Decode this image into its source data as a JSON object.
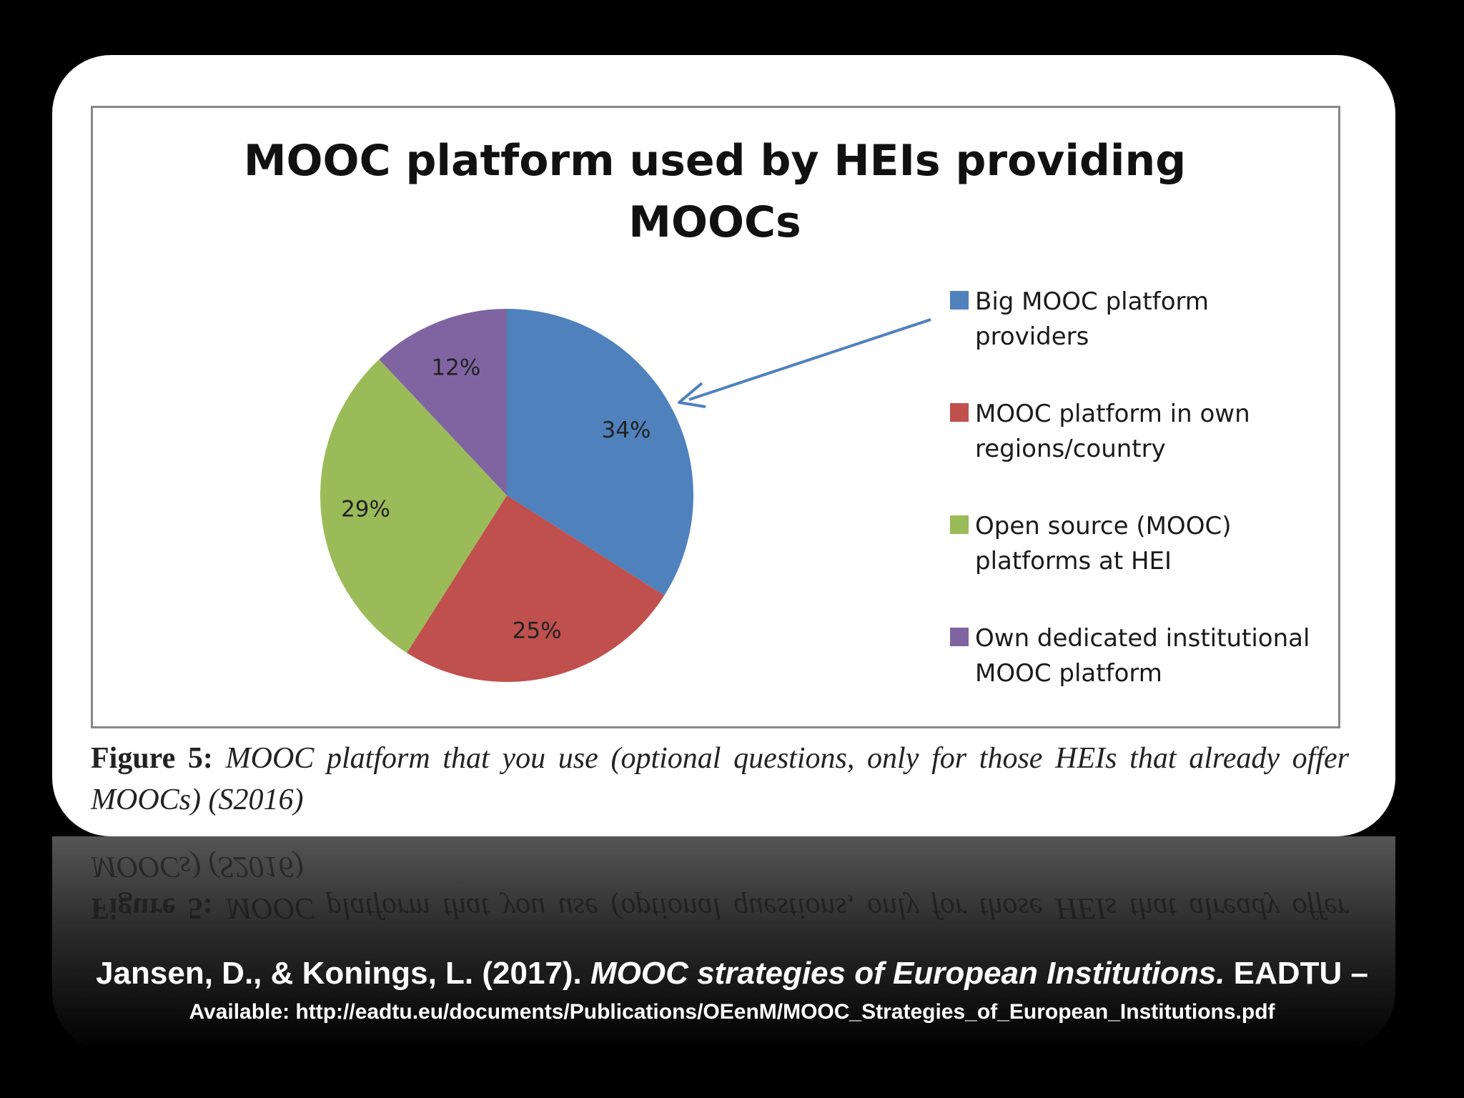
{
  "chart_data": {
    "type": "pie",
    "title_lines": [
      "MOOC platform used by HEIs providing",
      "MOOCs"
    ],
    "slices": [
      {
        "name": "Big MOOC platform providers",
        "legend_lines": [
          "Big MOOC platform",
          "providers"
        ],
        "value": 34,
        "label": "34%",
        "color": "#4f81bd"
      },
      {
        "name": "MOOC platform in own regions/country",
        "legend_lines": [
          "MOOC platform in own",
          "regions/country"
        ],
        "value": 25,
        "label": "25%",
        "color": "#c0504d"
      },
      {
        "name": "Open source (MOOC) platforms at HEI",
        "legend_lines": [
          "Open source (MOOC)",
          "platforms at HEI"
        ],
        "value": 29,
        "label": "29%",
        "color": "#9bbb59"
      },
      {
        "name": "Own dedicated institutional MOOC platform",
        "legend_lines": [
          "Own dedicated institutional",
          "MOOC platform"
        ],
        "value": 12,
        "label": "12%",
        "color": "#8064a2"
      }
    ],
    "legend_position": "right",
    "annotation": "arrow pointing to Big MOOC platform providers slice",
    "arrow_color": "#4f81bd"
  },
  "caption": {
    "label": "Figure 5:",
    "text": "MOOC platform that you use (optional questions, only for those HEIs that already offer MOOCs) (S2016)"
  },
  "citation": {
    "authors": "Jansen, D., & Konings, L. (2017).",
    "title": "MOOC strategies of European Institutions.",
    "publisher": "EADTU –",
    "availability": "Available: http://eadtu.eu/documents/Publications/OEenM/MOOC_Strategies_of_European_Institutions.pdf"
  }
}
